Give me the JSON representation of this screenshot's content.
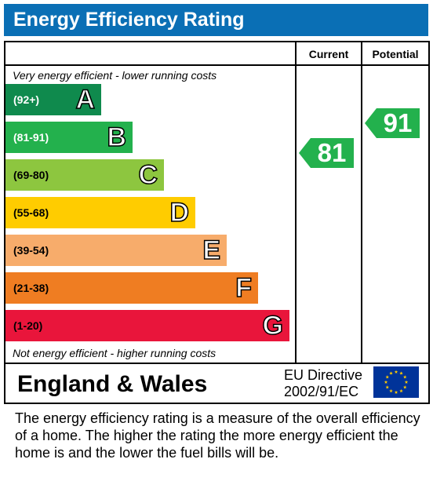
{
  "header": {
    "title": "Energy Efficiency Rating"
  },
  "columns": {
    "current": "Current",
    "potential": "Potential"
  },
  "notes": {
    "top": "Very energy efficient - lower running costs",
    "bottom": "Not energy efficient - higher running costs"
  },
  "chart_data": {
    "type": "bar",
    "title": "Energy Efficiency Rating",
    "bands": [
      {
        "letter": "A",
        "range": "(92+)",
        "color": "#0f8a4d",
        "range_color": "#ffffff"
      },
      {
        "letter": "B",
        "range": "(81-91)",
        "color": "#23b14d",
        "range_color": "#ffffff"
      },
      {
        "letter": "C",
        "range": "(69-80)",
        "color": "#8dc63f",
        "range_color": "#000000"
      },
      {
        "letter": "D",
        "range": "(55-68)",
        "color": "#ffcc00",
        "range_color": "#000000"
      },
      {
        "letter": "E",
        "range": "(39-54)",
        "color": "#f7ac6b",
        "range_color": "#000000"
      },
      {
        "letter": "F",
        "range": "(21-38)",
        "color": "#ef7d22",
        "range_color": "#000000"
      },
      {
        "letter": "G",
        "range": "(1-20)",
        "color": "#e9153b",
        "range_color": "#000000"
      }
    ],
    "current": {
      "value": 81,
      "color": "#23b14d"
    },
    "potential": {
      "value": 91,
      "color": "#23b14d"
    }
  },
  "footer": {
    "region": "England & Wales",
    "directive_line1": "EU Directive",
    "directive_line2": "2002/91/EC",
    "flag_icon": "eu-flag-icon",
    "flag_color": "#003399",
    "star_color": "#ffcc00"
  },
  "description": "The energy efficiency rating is a measure of the overall efficiency of a home.  The higher the rating the more energy efficient the home is and the lower the fuel bills will be."
}
